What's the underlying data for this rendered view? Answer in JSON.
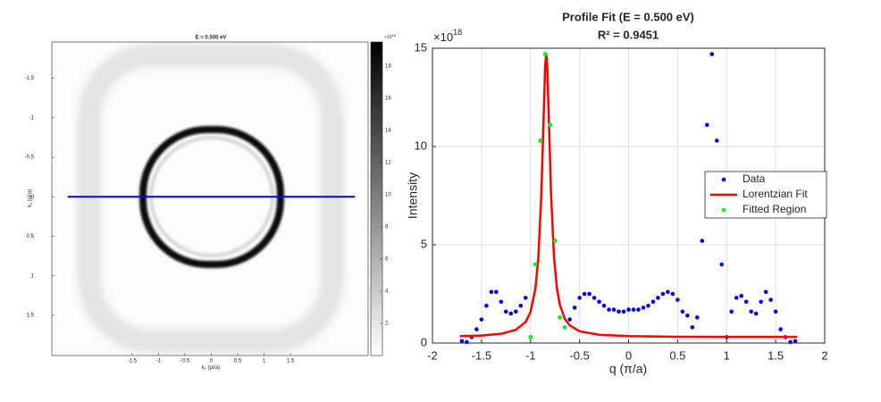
{
  "chart_data": [
    {
      "type": "heatmap",
      "title": "E = 0.500 eV",
      "xlabel": "k",
      "xlabel_sub": "x",
      "xlabel_unit": " (pi/a)",
      "ylabel": "k",
      "ylabel_sub": "y",
      "ylabel_unit": " (pi/a)",
      "xlim": [
        -3.02,
        2.97
      ],
      "ylim": [
        -1.96,
        2.01
      ],
      "y_reversed": true,
      "xticks": [
        -1.5,
        -1,
        -0.5,
        0,
        0.5,
        1,
        1.5
      ],
      "yticks": [
        -1.5,
        -1,
        -0.5,
        0,
        0.5,
        1,
        1.5
      ],
      "colorbar_lim": [
        0,
        19.5
      ],
      "colorbar_ticks": [
        2,
        4,
        6,
        8,
        10,
        12,
        14,
        16,
        18
      ],
      "colorbar_multiplier": "×10",
      "colorbar_exponent": "18",
      "cut_line": {
        "x": [
          -2.72,
          2.72
        ],
        "y": [
          0,
          0
        ],
        "color": "#0000ff"
      }
    },
    {
      "type": "scatter",
      "title": "Profile Fit (E = 0.500 eV)",
      "subtitle": "R² = 0.9451",
      "xlabel": "q (π/a)",
      "ylabel": "Intensity",
      "y_multiplier": "×10",
      "y_exponent": "18",
      "xlim": [
        -2,
        2
      ],
      "ylim": [
        0,
        15
      ],
      "xticks": [
        -2,
        -1.5,
        -1,
        -0.5,
        0,
        0.5,
        1,
        1.5,
        2
      ],
      "yticks": [
        0,
        5,
        10,
        15
      ],
      "grid": true,
      "legend": "right",
      "series": [
        {
          "name": "Data",
          "color": "#0000ff",
          "style": "marker",
          "x": [
            -1.7,
            -1.65,
            -1.6,
            -1.55,
            -1.5,
            -1.45,
            -1.4,
            -1.35,
            -1.3,
            -1.25,
            -1.2,
            -1.15,
            -1.1,
            -1.05,
            -1,
            -0.95,
            -0.9,
            -0.85,
            -0.8,
            -0.75,
            -0.7,
            -0.65,
            -0.6,
            -0.55,
            -0.5,
            -0.45,
            -0.4,
            -0.35,
            -0.3,
            -0.25,
            -0.2,
            -0.15,
            -0.1,
            -0.05,
            0,
            0.05,
            0.1,
            0.15,
            0.2,
            0.25,
            0.3,
            0.35,
            0.4,
            0.45,
            0.5,
            0.55,
            0.6,
            0.65,
            0.7,
            0.75,
            0.8,
            0.85,
            0.9,
            0.95,
            1,
            1.05,
            1.1,
            1.15,
            1.2,
            1.25,
            1.3,
            1.35,
            1.4,
            1.45,
            1.5,
            1.55,
            1.6,
            1.65,
            1.7
          ],
          "values": [
            0.1,
            0.05,
            0.3,
            0.7,
            1.2,
            1.9,
            2.6,
            2.6,
            2.1,
            1.6,
            1.5,
            1.6,
            1.9,
            2.3,
            0.3,
            4.0,
            10.3,
            14.7,
            11.1,
            5.2,
            1.3,
            0.8,
            1.2,
            1.8,
            2.3,
            2.5,
            2.5,
            2.3,
            2.1,
            1.9,
            1.7,
            1.7,
            1.6,
            1.6,
            1.7,
            1.7,
            1.7,
            1.8,
            1.9,
            2.1,
            2.3,
            2.5,
            2.6,
            2.5,
            2.2,
            1.6,
            1.4,
            0.8,
            1.3,
            5.2,
            11.1,
            14.7,
            10.3,
            4.0,
            0.3,
            1.6,
            2.3,
            2.4,
            2.1,
            1.6,
            1.5,
            2.1,
            2.6,
            2.2,
            1.6,
            0.7,
            0.3,
            0.05,
            0.1
          ]
        },
        {
          "name": "Lorentzian Fit",
          "color": "#ff0000",
          "style": "line",
          "x": [
            -1.72,
            -1.5,
            -1.3,
            -1.15,
            -1.05,
            -1,
            -0.95,
            -0.92,
            -0.89,
            -0.87,
            -0.85,
            -0.84,
            -0.83,
            -0.81,
            -0.79,
            -0.76,
            -0.73,
            -0.7,
            -0.65,
            -0.6,
            -0.5,
            -0.3,
            0,
            0.5,
            1,
            1.72
          ],
          "values": [
            0.35,
            0.38,
            0.47,
            0.67,
            1.07,
            1.58,
            2.77,
            4.34,
            7.5,
            10.89,
            14.15,
            14.7,
            14.15,
            10.89,
            7.5,
            4.34,
            2.77,
            1.93,
            1.23,
            0.9,
            0.6,
            0.42,
            0.35,
            0.32,
            0.31,
            0.31
          ]
        },
        {
          "name": "Fitted Region",
          "color": "#00ff00",
          "style": "marker",
          "x": [
            -1,
            -0.95,
            -0.9,
            -0.85,
            -0.8,
            -0.75,
            -0.7,
            -0.65
          ],
          "values": [
            0.3,
            4.0,
            10.3,
            14.7,
            11.1,
            5.2,
            1.3,
            0.8
          ]
        }
      ]
    }
  ]
}
